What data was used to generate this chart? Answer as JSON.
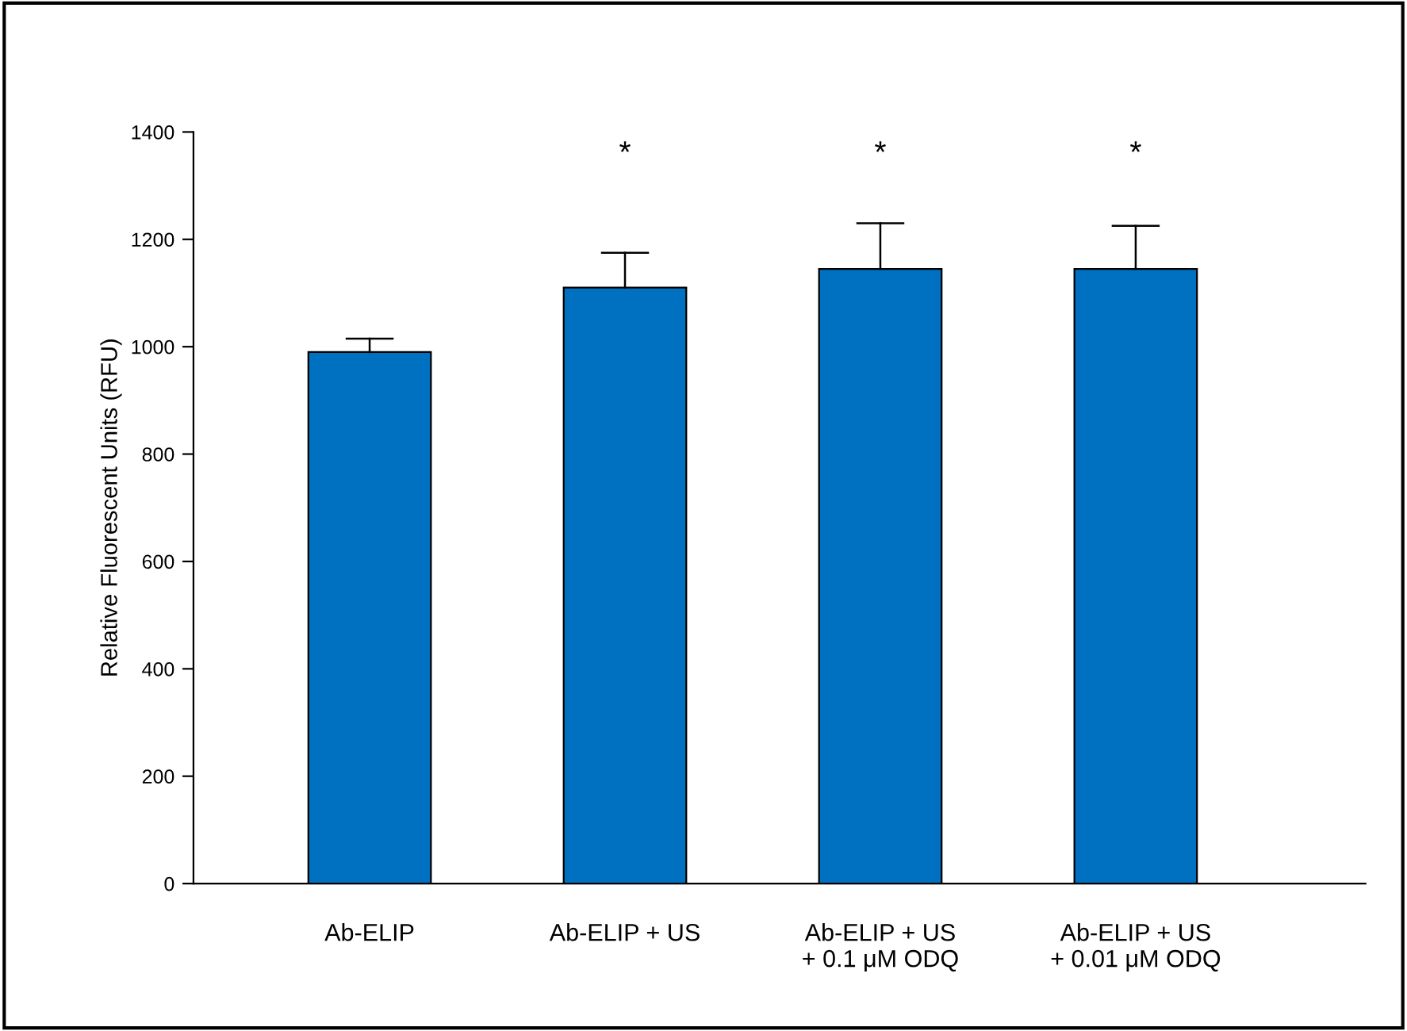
{
  "chart_data": {
    "type": "bar",
    "ylabel": "Relative Fluorescent Units (RFU)",
    "categories": [
      "Ab-ELIP",
      "Ab-ELIP + US",
      "Ab-ELIP + US\n+ 0.1 μM ODQ",
      "Ab-ELIP + US\n+ 0.01 μM ODQ"
    ],
    "values": [
      990,
      1110,
      1145,
      1145
    ],
    "errors": [
      [
        990,
        1015
      ],
      [
        1110,
        1175
      ],
      [
        1145,
        1230
      ],
      [
        1145,
        1225
      ]
    ],
    "color": "#0070c0",
    "ylim": [
      0,
      1400
    ],
    "yticks": [
      0,
      200,
      400,
      600,
      800,
      1000,
      1200,
      1400
    ],
    "annotations": [
      "*",
      "*",
      "*"
    ],
    "grid": false,
    "legend": false
  }
}
